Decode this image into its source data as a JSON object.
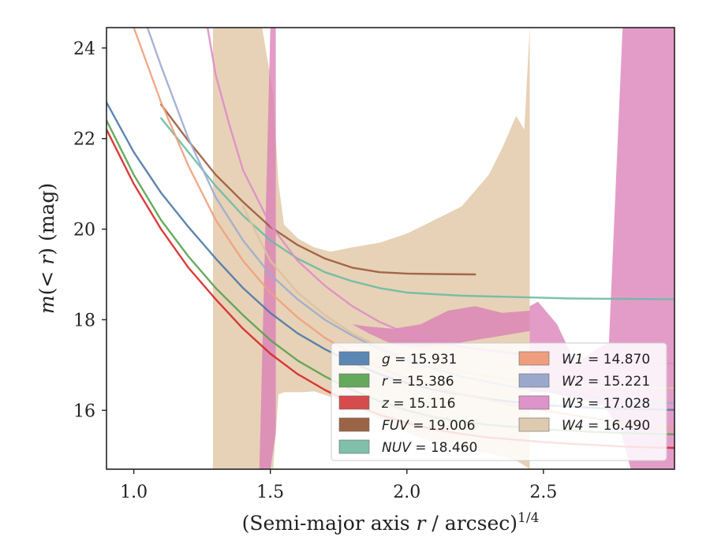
{
  "chart_data": {
    "type": "line",
    "xlabel": "(Semi-major axis r / arcsec)^1/4",
    "ylabel": "m(< r) (mag)",
    "xlim": [
      0.9,
      2.98
    ],
    "ylim": [
      24.45,
      14.7
    ],
    "y_inverted": true,
    "x_ticks": [
      "1.0",
      "1.5",
      "2.0",
      "2.5"
    ],
    "y_ticks": [
      "16",
      "18",
      "20",
      "22",
      "24"
    ],
    "grid": false,
    "legend_position": "lower-right",
    "series": [
      {
        "name": "g",
        "value": "15.931",
        "color": "#4c78a8",
        "x": [
          0.9,
          1.0,
          1.1,
          1.2,
          1.3,
          1.4,
          1.5,
          1.6,
          1.7,
          1.8,
          1.9,
          2.0,
          2.1,
          2.2,
          2.3,
          2.4,
          2.5,
          2.6,
          2.7,
          2.8,
          2.9,
          2.98
        ],
        "y": [
          22.8,
          21.7,
          20.8,
          20.05,
          19.35,
          18.7,
          18.15,
          17.7,
          17.35,
          17.05,
          16.8,
          16.6,
          16.45,
          16.35,
          16.25,
          16.18,
          16.12,
          16.08,
          16.05,
          16.03,
          16.02,
          16.01
        ]
      },
      {
        "name": "r",
        "value": "15.386",
        "color": "#59a14f",
        "x": [
          0.9,
          1.0,
          1.1,
          1.2,
          1.3,
          1.4,
          1.5,
          1.6,
          1.7,
          1.8,
          1.9,
          2.0,
          2.1,
          2.2,
          2.3,
          2.4,
          2.5,
          2.6,
          2.7,
          2.8,
          2.9,
          2.98
        ],
        "y": [
          22.4,
          21.2,
          20.2,
          19.4,
          18.7,
          18.1,
          17.55,
          17.1,
          16.75,
          16.45,
          16.2,
          16.0,
          15.85,
          15.75,
          15.68,
          15.63,
          15.58,
          15.55,
          15.52,
          15.5,
          15.48,
          15.47
        ]
      },
      {
        "name": "z",
        "value": "15.116",
        "color": "#d62728",
        "x": [
          0.9,
          1.0,
          1.1,
          1.2,
          1.3,
          1.4,
          1.5,
          1.6,
          1.7,
          1.8,
          1.9,
          2.0,
          2.1,
          2.2,
          2.3,
          2.4,
          2.5,
          2.6,
          2.7,
          2.8,
          2.9,
          2.98
        ],
        "y": [
          22.2,
          21.0,
          20.0,
          19.15,
          18.45,
          17.8,
          17.25,
          16.8,
          16.45,
          16.15,
          15.9,
          15.72,
          15.58,
          15.48,
          15.4,
          15.35,
          15.3,
          15.26,
          15.23,
          15.2,
          15.18,
          15.17
        ]
      },
      {
        "name": "FUV",
        "value": "19.006",
        "color": "#9c5a3c",
        "x": [
          1.1,
          1.2,
          1.3,
          1.4,
          1.5,
          1.6,
          1.7,
          1.8,
          1.9,
          2.0,
          2.1,
          2.25
        ],
        "y": [
          22.75,
          21.95,
          21.2,
          20.6,
          20.05,
          19.65,
          19.35,
          19.15,
          19.05,
          19.02,
          19.01,
          19.0
        ]
      },
      {
        "name": "NUV",
        "value": "18.460",
        "color": "#6cbba3",
        "x": [
          1.1,
          1.2,
          1.3,
          1.4,
          1.5,
          1.6,
          1.7,
          1.8,
          1.9,
          2.0,
          2.2,
          2.4,
          2.6,
          2.8,
          2.98
        ],
        "y": [
          22.45,
          21.7,
          20.95,
          20.3,
          19.75,
          19.35,
          19.05,
          18.85,
          18.7,
          18.6,
          18.53,
          18.5,
          18.47,
          18.46,
          18.45
        ]
      },
      {
        "name": "W1",
        "value": "14.870",
        "color": "#f0a07c",
        "x": [
          1.0,
          1.1,
          1.2,
          1.3,
          1.4,
          1.5,
          1.6,
          1.7,
          1.8,
          1.9,
          2.0,
          2.2,
          2.4,
          2.6,
          2.8,
          2.98
        ],
        "y": [
          24.45,
          22.8,
          21.4,
          20.2,
          19.3,
          18.6,
          18.05,
          17.6,
          17.25,
          16.95,
          16.7,
          16.35,
          16.1,
          15.9,
          15.72,
          15.6
        ]
      },
      {
        "name": "W2",
        "value": "15.221",
        "color": "#9eabcf",
        "x": [
          1.05,
          1.1,
          1.2,
          1.3,
          1.4,
          1.5,
          1.6,
          1.7,
          1.8,
          1.9,
          2.0,
          2.2,
          2.4,
          2.6,
          2.8,
          2.98
        ],
        "y": [
          24.45,
          23.6,
          22.0,
          20.7,
          19.75,
          19.0,
          18.45,
          18.0,
          17.65,
          17.35,
          17.1,
          16.75,
          16.5,
          16.35,
          16.22,
          16.15
        ]
      },
      {
        "name": "W3",
        "value": "17.028",
        "color": "#e08cc6",
        "x": [
          1.27,
          1.3,
          1.35,
          1.4,
          1.5,
          1.6,
          1.7,
          1.8,
          1.9,
          2.0,
          2.2,
          2.4,
          2.6,
          2.8,
          2.98
        ],
        "y": [
          24.45,
          23.4,
          22.3,
          21.3,
          20.1,
          19.3,
          18.75,
          18.3,
          17.95,
          17.7,
          17.4,
          17.25,
          17.15,
          17.07,
          17.03
        ]
      },
      {
        "name": "W4",
        "value": "16.490",
        "color": "#dcc29c",
        "x": [
          1.4,
          1.5,
          1.6,
          1.7,
          1.8,
          1.9,
          2.0,
          2.2,
          2.4,
          2.6,
          2.8,
          2.98
        ],
        "y": [
          20.5,
          19.3,
          18.6,
          18.1,
          17.7,
          17.4,
          17.15,
          16.85,
          16.65,
          16.55,
          16.5,
          16.49
        ]
      }
    ],
    "bands": [
      {
        "name": "W4",
        "color": "#d8b68a",
        "opacity": 0.62,
        "x": [
          1.29,
          1.29,
          1.32,
          1.36,
          1.41,
          1.45,
          1.51,
          1.53,
          1.55,
          1.58,
          1.62,
          1.66,
          1.72,
          1.8,
          1.9,
          2.0,
          2.1,
          2.2,
          2.3,
          2.4,
          2.45,
          2.45,
          2.43,
          2.4,
          2.35,
          2.3,
          2.2,
          2.1,
          2.0,
          1.9,
          1.8,
          1.72,
          1.66,
          1.6,
          1.55,
          1.53,
          1.51,
          1.47,
          1.44,
          1.41,
          1.36,
          1.32
        ],
        "y": [
          24.45,
          14.7,
          14.7,
          14.7,
          14.7,
          14.7,
          14.7,
          16.35,
          16.4,
          16.4,
          16.4,
          16.42,
          16.3,
          16.1,
          15.8,
          15.5,
          15.3,
          15.15,
          15.05,
          14.9,
          14.7,
          24.45,
          22.2,
          22.5,
          21.8,
          21.2,
          20.5,
          20.2,
          19.9,
          19.7,
          19.6,
          19.5,
          19.6,
          19.8,
          20.1,
          21.0,
          23.0,
          24.45,
          24.45,
          24.45,
          24.45,
          24.45
        ]
      },
      {
        "name": "W3",
        "color": "#d97bb6",
        "opacity": 0.75,
        "x": [
          1.46,
          1.5,
          1.52,
          1.52,
          1.5
        ],
        "y": [
          14.7,
          14.7,
          15.5,
          24.45,
          24.45
        ]
      },
      {
        "name": "W3",
        "color": "#d97bb6",
        "opacity": 0.75,
        "x": [
          1.8,
          1.86,
          1.95,
          2.05,
          2.15,
          2.25,
          2.35,
          2.45,
          2.45,
          2.35,
          2.25,
          2.15,
          2.05,
          1.95,
          1.86
        ],
        "y": [
          17.9,
          17.7,
          17.45,
          17.4,
          17.45,
          17.55,
          17.65,
          17.75,
          18.2,
          18.15,
          18.3,
          18.2,
          17.9,
          17.8,
          17.85
        ]
      },
      {
        "name": "W3",
        "color": "#d97bb6",
        "opacity": 0.75,
        "x": [
          2.45,
          2.52,
          2.58,
          2.66,
          2.72,
          2.78,
          2.82,
          2.98,
          2.98,
          2.85,
          2.79,
          2.74,
          2.68,
          2.62,
          2.55,
          2.48,
          2.45
        ],
        "y": [
          16.4,
          16.4,
          16.3,
          16.2,
          16.1,
          15.6,
          14.7,
          14.7,
          24.45,
          24.45,
          24.45,
          17.5,
          17.3,
          17.0,
          17.9,
          18.4,
          18.3
        ]
      }
    ]
  },
  "legend": {
    "items": [
      {
        "symbol": "g",
        "value": "= 15.931"
      },
      {
        "symbol": "r",
        "value": "= 15.386"
      },
      {
        "symbol": "z",
        "value": "= 15.116"
      },
      {
        "symbol": "FUV",
        "value": "= 19.006"
      },
      {
        "symbol": "NUV",
        "value": "= 18.460"
      },
      {
        "symbol": "W1",
        "value": "= 14.870"
      },
      {
        "symbol": "W2",
        "value": "= 15.221"
      },
      {
        "symbol": "W3",
        "value": "= 17.028"
      },
      {
        "symbol": "W4",
        "value": "= 16.490"
      }
    ]
  }
}
